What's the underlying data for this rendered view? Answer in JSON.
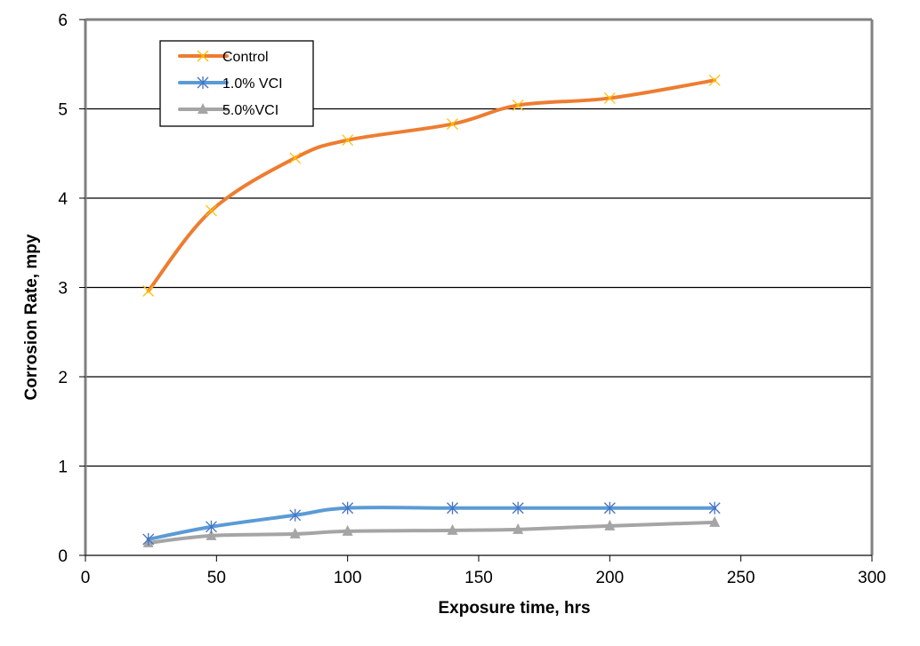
{
  "chart_data": {
    "type": "line",
    "title": "",
    "xlabel": "Exposure time, hrs",
    "ylabel": "Corrosion Rate, mpy",
    "xlim": [
      0,
      300
    ],
    "ylim": [
      0,
      6
    ],
    "xticks": [
      0,
      50,
      100,
      150,
      200,
      250,
      300
    ],
    "yticks": [
      0,
      1,
      2,
      3,
      4,
      5,
      6
    ],
    "grid": "horizontal",
    "legend_position": "top-left",
    "smooth": true,
    "series": [
      {
        "name": "Control",
        "color": "#ED7D31",
        "marker": "x",
        "marker_color": "#FFC000",
        "x": [
          24,
          48,
          80,
          100,
          140,
          165,
          200,
          240
        ],
        "y": [
          2.96,
          3.86,
          4.45,
          4.65,
          4.83,
          5.04,
          5.12,
          5.32
        ]
      },
      {
        "name": "1.0% VCI",
        "color": "#5B9BD5",
        "marker": "star",
        "marker_color": "#4472C4",
        "x": [
          24,
          48,
          80,
          100,
          140,
          165,
          200,
          240
        ],
        "y": [
          0.18,
          0.32,
          0.45,
          0.53,
          0.53,
          0.53,
          0.53,
          0.53
        ]
      },
      {
        "name": "5.0%VCI",
        "color": "#A5A5A5",
        "marker": "triangle",
        "marker_color": "#A5A5A5",
        "x": [
          24,
          48,
          80,
          100,
          140,
          165,
          200,
          240
        ],
        "y": [
          0.14,
          0.22,
          0.24,
          0.27,
          0.28,
          0.29,
          0.33,
          0.37
        ]
      }
    ]
  }
}
